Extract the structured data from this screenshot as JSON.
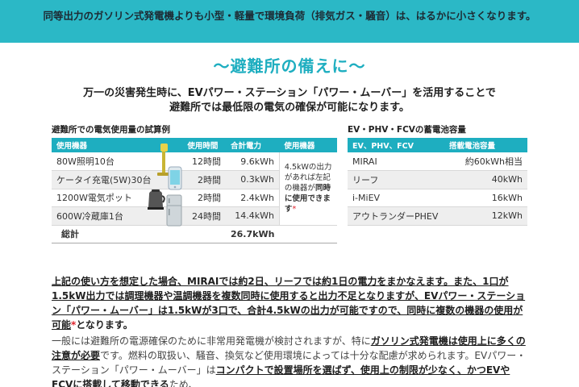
{
  "banner": "同等出力のガソリン式発電機よりも小型・軽量で環境負荷（排気ガス・騒音）は、はるかに小さくなります。",
  "headline": "〜避難所の備えに〜",
  "lead_line1": "万一の災害発生時に、EVパワー・ステーション「パワー・ムーバー」を活用することで",
  "lead_line2": "避難所では最低限の電気の確保が可能になります。",
  "usage_table": {
    "title": "避難所での電気使用量の試算例",
    "headers": [
      "使用機器",
      "使用時間",
      "合計電力",
      "使用機器"
    ],
    "rows": [
      {
        "device": "80W照明10台",
        "hours": "12時間",
        "power": "9.6kWh"
      },
      {
        "device": "ケータイ充電(5W)30台",
        "hours": "2時間",
        "power": "0.3kWh"
      },
      {
        "device": "1200W電気ポット",
        "hours": "2時間",
        "power": "2.4kWh"
      },
      {
        "device": "600W冷蔵庫1台",
        "hours": "24時間",
        "power": "14.4kWh"
      }
    ],
    "note_part1": "4.5kWの出力があれば左記の機器が",
    "note_bold": "同時に使用できます",
    "note_star": "*",
    "total_label": "総計",
    "total_value": "26.7kWh"
  },
  "car_table": {
    "title": "EV・PHV・FCVの蓄電池容量",
    "headers": [
      "EV、PHV、FCV",
      "搭載電池容量"
    ],
    "rows": [
      {
        "car": "MIRAI",
        "capacity": "約60kWh相当"
      },
      {
        "car": "リーフ",
        "capacity": "40kWh"
      },
      {
        "car": "i-MiEV",
        "capacity": "16kWh"
      },
      {
        "car": "アウトランダーPHEV",
        "capacity": "12kWh"
      }
    ]
  },
  "body_para1": "上記の使い方を想定した場合、MIRAIでは約2日、リーフでは約1日の電力をまかなえます。また、1口が1.5kW出力では調理機器や温調機器を複数同時に使用すると出力不足となりますが、EVパワー・ステーション「パワー・ムーバー」は1.5kWが3口で、合計4.5kWの出力が可能ですので、同時に複数の機器の使用が可能",
  "body_para1_star": "*",
  "body_para1_end": "となります。",
  "body_para2_a": "一般には避難所の電源確保のために非常用発電機が検討されますが、特に",
  "body_para2_b": "ガソリン式発電機は使用上に多くの注意が必要",
  "body_para2_c": "です。燃料の取扱い、騒音、換気など使用環境によっては十分な配慮が求められます。EVパワー・ステーション「パワー・ムーバー」は",
  "body_para2_d": "コンパクトで設置場所を選ばず、使用上の制限が少なく、かつEVやFCVに搭載して移動できる",
  "body_para2_e": "ため、",
  "colors": {
    "accent": "#1eaec0",
    "banner": "#2bb8c6",
    "star": "#e0242d"
  },
  "icons": [
    "light-stand-icon",
    "mobile-phone-icon",
    "electric-pot-icon",
    "refrigerator-icon"
  ]
}
